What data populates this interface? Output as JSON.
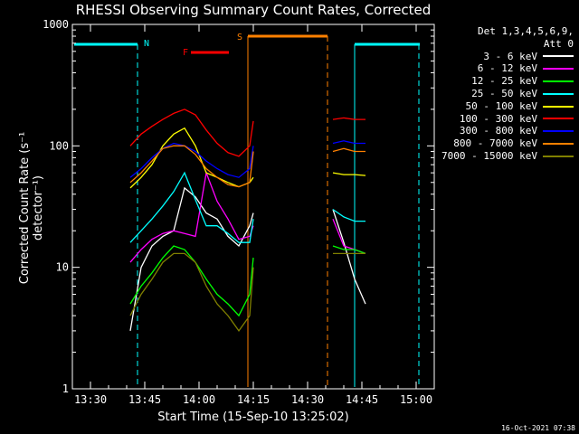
{
  "chart_data": {
    "type": "line",
    "title": "RHESSI Observing Summary Count Rates, Corrected",
    "xlabel": "Start Time (15-Sep-10 13:25:02)",
    "ylabel": "Corrected Count Rate (s⁻¹ detector⁻¹)",
    "yscale": "log",
    "ylim": [
      1,
      1000
    ],
    "xlim": [
      "13:25",
      "15:05"
    ],
    "x_ticks": [
      "13:30",
      "13:45",
      "14:00",
      "14:15",
      "14:30",
      "14:45",
      "15:00"
    ],
    "y_ticks": [
      "1",
      "10",
      "100",
      "1000"
    ],
    "grid": false,
    "legend_header": [
      "Det 1,3,4,5,6,9,",
      "Att 0"
    ],
    "legend_position": "top-right",
    "timestamp": "16-Oct-2021 07:38",
    "x": [
      "13:41",
      "13:44",
      "13:47",
      "13:50",
      "13:53",
      "13:56",
      "13:59",
      "14:02",
      "14:05",
      "14:08",
      "14:11",
      "14:14",
      "14:15",
      "14:37",
      "14:40",
      "14:43",
      "14:46"
    ],
    "series": [
      {
        "name": "3 - 6 keV",
        "color": "#ffffff",
        "values": [
          3,
          10,
          15,
          18,
          20,
          45,
          38,
          28,
          25,
          18,
          15,
          22,
          28,
          30,
          16,
          8,
          5
        ]
      },
      {
        "name": "6 - 12 keV",
        "color": "#ff00ff",
        "values": [
          11,
          14,
          17,
          19,
          20,
          19,
          18,
          60,
          35,
          25,
          17,
          18,
          22,
          25,
          15,
          14,
          13
        ]
      },
      {
        "name": "12 - 25 keV",
        "color": "#00ff00",
        "values": [
          5,
          7,
          9,
          12,
          15,
          14,
          11,
          8,
          6,
          5,
          4,
          6,
          12,
          15,
          14,
          14,
          13
        ]
      },
      {
        "name": "25 - 50 keV",
        "color": "#00ffff",
        "values": [
          16,
          20,
          25,
          32,
          42,
          60,
          36,
          22,
          22,
          19,
          16,
          16,
          25,
          30,
          26,
          24,
          24
        ]
      },
      {
        "name": "50 - 100 keV",
        "color": "#ffff00",
        "values": [
          45,
          55,
          70,
          100,
          125,
          140,
          100,
          60,
          55,
          50,
          46,
          50,
          55,
          60,
          58,
          58,
          57
        ]
      },
      {
        "name": "100 - 300 keV",
        "color": "#ff0000",
        "values": [
          100,
          125,
          145,
          165,
          185,
          200,
          180,
          135,
          105,
          88,
          82,
          100,
          160,
          165,
          170,
          165,
          165
        ]
      },
      {
        "name": "300 - 800 keV",
        "color": "#0000ff",
        "values": [
          55,
          65,
          80,
          95,
          105,
          100,
          90,
          75,
          65,
          58,
          55,
          65,
          100,
          105,
          110,
          105,
          105
        ]
      },
      {
        "name": "800 - 7000 keV",
        "color": "#ff8000",
        "values": [
          50,
          60,
          75,
          95,
          100,
          100,
          85,
          65,
          55,
          48,
          46,
          50,
          90,
          90,
          95,
          90,
          90
        ]
      },
      {
        "name": "7000 - 15000 keV",
        "color": "#808000",
        "values": [
          4,
          6,
          8,
          11,
          13,
          13,
          11,
          7,
          5,
          4,
          3,
          4,
          10,
          13,
          13,
          13,
          13
        ]
      }
    ],
    "annotations": [
      {
        "label": "N",
        "type": "flag",
        "color": "#00ffff"
      },
      {
        "label": "F",
        "type": "flag",
        "color": "#ff0000"
      },
      {
        "label": "S",
        "type": "flag",
        "color": "#ff8000"
      }
    ]
  }
}
